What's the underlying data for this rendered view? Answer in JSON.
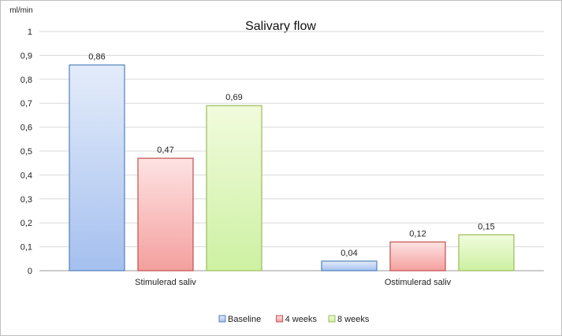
{
  "chart_data": {
    "type": "bar",
    "title": "Salivary flow",
    "ylabel": "ml/min",
    "ylim": [
      0,
      1
    ],
    "yticks": [
      "0",
      "0,1",
      "0,2",
      "0,3",
      "0,4",
      "0,5",
      "0,6",
      "0,7",
      "0,8",
      "0,9",
      "1"
    ],
    "categories": [
      "Stimulerad saliv",
      "Ostimulerad saliv"
    ],
    "series": [
      {
        "name": "Baseline",
        "values": [
          0.86,
          0.04
        ],
        "labels": [
          "0,86",
          "0,04"
        ],
        "color": "#4f81bd",
        "fill_top": "#e4ecfa",
        "fill_bottom": "#a5c0ef"
      },
      {
        "name": "4 weeks",
        "values": [
          0.47,
          0.12
        ],
        "labels": [
          "0,47",
          "0,12"
        ],
        "color": "#c0504d",
        "fill_top": "#fde3e3",
        "fill_bottom": "#f4a09e"
      },
      {
        "name": "8 weeks",
        "values": [
          0.69,
          0.15
        ],
        "labels": [
          "0,69",
          "0,15"
        ],
        "color": "#9bbb59",
        "fill_top": "#f1fbdd",
        "fill_bottom": "#cdf1a2"
      }
    ],
    "grid": true,
    "legend": "bottom-center"
  },
  "colors": {
    "grid": "#d9d9d9",
    "axis": "#999999"
  }
}
